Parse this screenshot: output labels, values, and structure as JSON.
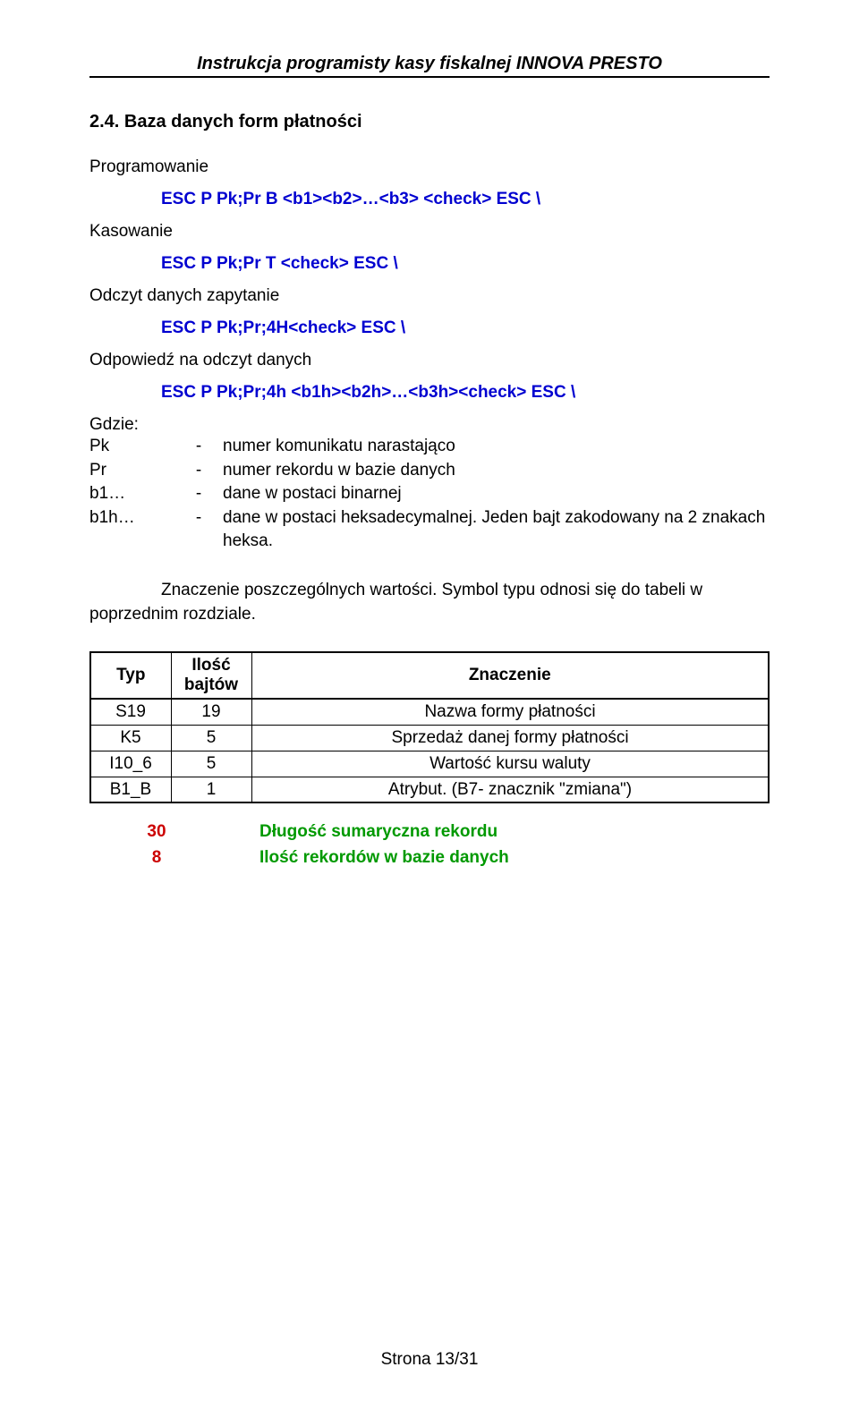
{
  "header": {
    "title": "Instrukcja programisty kasy fiskalnej INNOVA PRESTO"
  },
  "section": {
    "title": "2.4. Baza danych form płatności"
  },
  "blocks": {
    "prog_label": "Programowanie",
    "prog_cmd": "ESC P Pk;Pr B <b1><b2>…<b3> <check> ESC \\",
    "kas_label": "Kasowanie",
    "kas_cmd": "ESC P Pk;Pr T <check> ESC \\",
    "odczyt_zap_label": "Odczyt danych zapytanie",
    "odczyt_zap_cmd": "ESC P Pk;Pr;4H<check> ESC \\",
    "odp_label": "Odpowiedź na odczyt danych",
    "odp_cmd": "ESC P Pk;Pr;4h <b1h><b2h>…<b3h><check> ESC \\"
  },
  "params": {
    "gdzie": "Gdzie:",
    "items": [
      {
        "key": "Pk",
        "desc": "numer komunikatu narastająco"
      },
      {
        "key": "Pr",
        "desc": "numer rekordu w bazie danych"
      },
      {
        "key": "b1…",
        "desc": "dane w postaci binarnej"
      },
      {
        "key": "b1h…",
        "desc": "dane w postaci heksadecymalnej. Jeden bajt zakodowany na 2 znakach heksa."
      }
    ]
  },
  "para": {
    "text1": "Znaczenie poszczególnych wartości. Symbol typu odnosi się do tabeli w",
    "text2": "poprzednim rozdziale."
  },
  "table": {
    "head": {
      "typ": "Typ",
      "bajt": "Ilość bajtów",
      "zn": "Znaczenie"
    },
    "rows": [
      {
        "typ": "S19",
        "bajt": "19",
        "zn": "Nazwa formy płatności"
      },
      {
        "typ": "K5",
        "bajt": "5",
        "zn": "Sprzedaż danej formy płatności"
      },
      {
        "typ": "I10_6",
        "bajt": "5",
        "zn": "Wartość kursu waluty"
      },
      {
        "typ": "B1_B",
        "bajt": "1",
        "zn": "Atrybut. (B7- znacznik \"zmiana\")"
      }
    ]
  },
  "summary": {
    "rows": [
      {
        "num": "30",
        "text": "Długość sumaryczna rekordu"
      },
      {
        "num": "8",
        "text": "Ilość rekordów w bazie danych"
      }
    ]
  },
  "footer": {
    "text": "Strona 13/31"
  },
  "colors": {
    "cmd": "#0000d0",
    "sum_num": "#cc0000",
    "sum_text": "#009900",
    "text": "#000000",
    "border": "#000000",
    "background": "#ffffff"
  },
  "fonts": {
    "base_size_pt": 14,
    "header_size_pt": 15,
    "family": "Arial"
  }
}
